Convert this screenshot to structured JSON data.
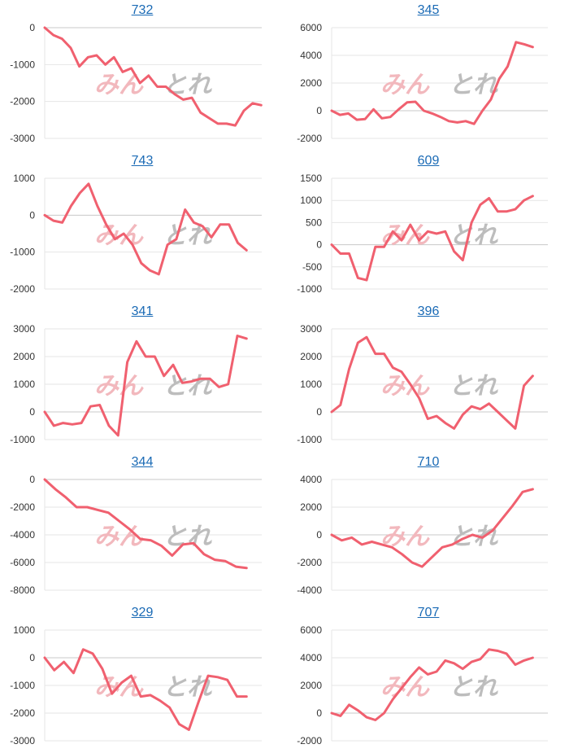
{
  "watermark": {
    "left": "みん",
    "right": "とれ"
  },
  "colors": {
    "line": "#f0606f",
    "grid": "#e6e6e6",
    "axis_zero": "#c8c8c8",
    "link": "#1a6ab5",
    "watermark_left": "#f2b8bd",
    "watermark_right": "#bdbdbd"
  },
  "chart_data": [
    {
      "type": "line",
      "title": "732",
      "yticks": [
        0,
        -1000,
        -2000,
        -3000
      ],
      "ylim": [
        -3000,
        0
      ],
      "values": [
        0,
        -200,
        -300,
        -550,
        -1050,
        -800,
        -750,
        -1000,
        -800,
        -1200,
        -1100,
        -1500,
        -1300,
        -1600,
        -1600,
        -1800,
        -1950,
        -1900,
        -2300,
        -2450,
        -2600,
        -2600,
        -2650,
        -2250,
        -2050,
        -2100
      ]
    },
    {
      "type": "line",
      "title": "345",
      "yticks": [
        6000,
        4000,
        2000,
        0,
        -2000
      ],
      "ylim": [
        -2000,
        6000
      ],
      "values": [
        0,
        -300,
        -200,
        -650,
        -600,
        100,
        -550,
        -450,
        100,
        600,
        650,
        0,
        -200,
        -450,
        -750,
        -850,
        -750,
        -950,
        0,
        800,
        2300,
        3200,
        4950,
        4800,
        4600
      ]
    },
    {
      "type": "line",
      "title": "743",
      "yticks": [
        1000,
        0,
        -1000,
        -2000
      ],
      "ylim": [
        -2000,
        1000
      ],
      "values": [
        0,
        -150,
        -200,
        250,
        600,
        850,
        250,
        -250,
        -650,
        -500,
        -800,
        -1300,
        -1500,
        -1600,
        -800,
        -650,
        150,
        -200,
        -300,
        -600,
        -250,
        -250,
        -750,
        -950
      ]
    },
    {
      "type": "line",
      "title": "609",
      "yticks": [
        1500,
        1000,
        500,
        0,
        -500,
        -1000
      ],
      "ylim": [
        -1000,
        1500
      ],
      "values": [
        0,
        -200,
        -200,
        -750,
        -800,
        -50,
        -50,
        300,
        100,
        450,
        100,
        300,
        250,
        300,
        -150,
        -350,
        500,
        900,
        1050,
        750,
        750,
        800,
        1000,
        1100
      ]
    },
    {
      "type": "line",
      "title": "341",
      "yticks": [
        3000,
        2000,
        1000,
        0,
        -1000
      ],
      "ylim": [
        -1000,
        3000
      ],
      "values": [
        0,
        -500,
        -400,
        -450,
        -400,
        200,
        250,
        -500,
        -850,
        1800,
        2550,
        2000,
        2000,
        1300,
        1700,
        1050,
        1100,
        1200,
        1200,
        900,
        1000,
        2750,
        2650
      ]
    },
    {
      "type": "line",
      "title": "396",
      "yticks": [
        3000,
        2000,
        1000,
        0,
        -1000
      ],
      "ylim": [
        -1000,
        3000
      ],
      "values": [
        0,
        250,
        1550,
        2500,
        2700,
        2100,
        2100,
        1600,
        1450,
        1000,
        500,
        -250,
        -150,
        -400,
        -600,
        -100,
        200,
        100,
        300,
        0,
        -300,
        -600,
        950,
        1300
      ]
    },
    {
      "type": "line",
      "title": "344",
      "yticks": [
        0,
        -2000,
        -4000,
        -6000,
        -8000
      ],
      "ylim": [
        -8000,
        0
      ],
      "values": [
        0,
        -700,
        -1300,
        -2000,
        -2000,
        -2200,
        -2400,
        -3000,
        -3600,
        -4300,
        -4400,
        -4800,
        -5500,
        -4700,
        -4600,
        -5400,
        -5800,
        -5900,
        -6300,
        -6400
      ]
    },
    {
      "type": "line",
      "title": "710",
      "yticks": [
        4000,
        2000,
        0,
        -2000,
        -4000
      ],
      "ylim": [
        -4000,
        4000
      ],
      "values": [
        0,
        -400,
        -200,
        -700,
        -500,
        -700,
        -900,
        -1400,
        -2000,
        -2300,
        -1600,
        -900,
        -700,
        -300,
        0,
        -200,
        300,
        1200,
        2100,
        3100,
        3300
      ]
    },
    {
      "type": "line",
      "title": "329",
      "yticks": [
        1000,
        0,
        -1000,
        -2000,
        -3000
      ],
      "ylim": [
        -3000,
        1000
      ],
      "values": [
        0,
        -450,
        -150,
        -550,
        300,
        150,
        -400,
        -1300,
        -900,
        -650,
        -1400,
        -1350,
        -1550,
        -1800,
        -2400,
        -2600,
        -1600,
        -650,
        -700,
        -800,
        -1400,
        -1400
      ]
    },
    {
      "type": "line",
      "title": "707",
      "yticks": [
        6000,
        4000,
        2000,
        0,
        -2000
      ],
      "ylim": [
        -2000,
        6000
      ],
      "values": [
        0,
        -200,
        600,
        200,
        -300,
        -500,
        0,
        1000,
        1800,
        2600,
        3300,
        2800,
        3000,
        3800,
        3600,
        3200,
        3700,
        3900,
        4600,
        4500,
        4300,
        3500,
        3800,
        4000
      ]
    }
  ]
}
